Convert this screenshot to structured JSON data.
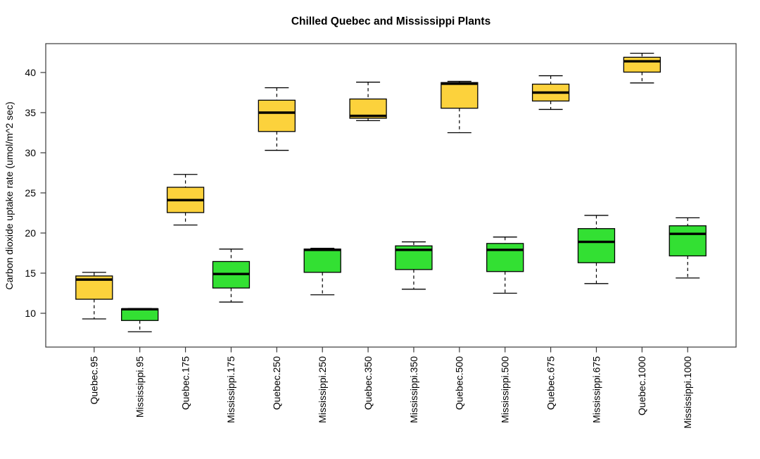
{
  "chart_data": {
    "type": "boxplot",
    "title": "Chilled Quebec and Mississippi Plants",
    "xlabel": "",
    "ylabel": "Carbon dioxide uptake rate (umol/m^2 sec)",
    "yticks": [
      10,
      15,
      20,
      25,
      30,
      35,
      40
    ],
    "ylim": [
      5.8,
      43.6
    ],
    "grid": false,
    "legend_position": "none",
    "groups": [
      "Quebec",
      "Mississippi"
    ],
    "colors": {
      "Quebec": "#FCD23C",
      "Mississippi": "#33E033"
    },
    "box_border_color": "#000000",
    "axis_color": "#3a3a3a",
    "categories": [
      "Quebec.95",
      "Mississippi.95",
      "Quebec.175",
      "Mississippi.175",
      "Quebec.250",
      "Mississippi.250",
      "Quebec.350",
      "Mississippi.350",
      "Quebec.500",
      "Mississippi.500",
      "Quebec.675",
      "Mississippi.675",
      "Quebec.1000",
      "Mississippi.1000"
    ],
    "boxes": [
      {
        "category": "Quebec.95",
        "group": "Quebec",
        "whisker_low": 9.3,
        "q1": 11.75,
        "median": 14.2,
        "q3": 14.65,
        "whisker_high": 15.1
      },
      {
        "category": "Mississippi.95",
        "group": "Mississippi",
        "whisker_low": 7.7,
        "q1": 9.1,
        "median": 10.5,
        "q3": 10.55,
        "whisker_high": 10.6
      },
      {
        "category": "Quebec.175",
        "group": "Quebec",
        "whisker_low": 21.0,
        "q1": 22.55,
        "median": 24.1,
        "q3": 25.7,
        "whisker_high": 27.3
      },
      {
        "category": "Mississippi.175",
        "group": "Mississippi",
        "whisker_low": 11.4,
        "q1": 13.15,
        "median": 14.9,
        "q3": 16.45,
        "whisker_high": 18.0
      },
      {
        "category": "Quebec.250",
        "group": "Quebec",
        "whisker_low": 30.3,
        "q1": 32.65,
        "median": 35.0,
        "q3": 36.55,
        "whisker_high": 38.1
      },
      {
        "category": "Mississippi.250",
        "group": "Mississippi",
        "whisker_low": 12.3,
        "q1": 15.1,
        "median": 17.9,
        "q3": 18.0,
        "whisker_high": 18.1
      },
      {
        "category": "Quebec.350",
        "group": "Quebec",
        "whisker_low": 34.0,
        "q1": 34.3,
        "median": 34.6,
        "q3": 36.7,
        "whisker_high": 38.8
      },
      {
        "category": "Mississippi.350",
        "group": "Mississippi",
        "whisker_low": 13.0,
        "q1": 15.45,
        "median": 17.9,
        "q3": 18.4,
        "whisker_high": 18.9
      },
      {
        "category": "Quebec.500",
        "group": "Quebec",
        "whisker_low": 32.5,
        "q1": 35.55,
        "median": 38.6,
        "q3": 38.75,
        "whisker_high": 38.9
      },
      {
        "category": "Mississippi.500",
        "group": "Mississippi",
        "whisker_low": 12.5,
        "q1": 15.2,
        "median": 17.9,
        "q3": 18.7,
        "whisker_high": 19.5
      },
      {
        "category": "Quebec.675",
        "group": "Quebec",
        "whisker_low": 35.4,
        "q1": 36.45,
        "median": 37.5,
        "q3": 38.55,
        "whisker_high": 39.6
      },
      {
        "category": "Mississippi.675",
        "group": "Mississippi",
        "whisker_low": 13.7,
        "q1": 16.3,
        "median": 18.9,
        "q3": 20.55,
        "whisker_high": 22.2
      },
      {
        "category": "Quebec.1000",
        "group": "Quebec",
        "whisker_low": 38.7,
        "q1": 40.05,
        "median": 41.4,
        "q3": 41.9,
        "whisker_high": 42.4
      },
      {
        "category": "Mississippi.1000",
        "group": "Mississippi",
        "whisker_low": 14.4,
        "q1": 17.15,
        "median": 19.9,
        "q3": 20.9,
        "whisker_high": 21.9
      }
    ]
  }
}
